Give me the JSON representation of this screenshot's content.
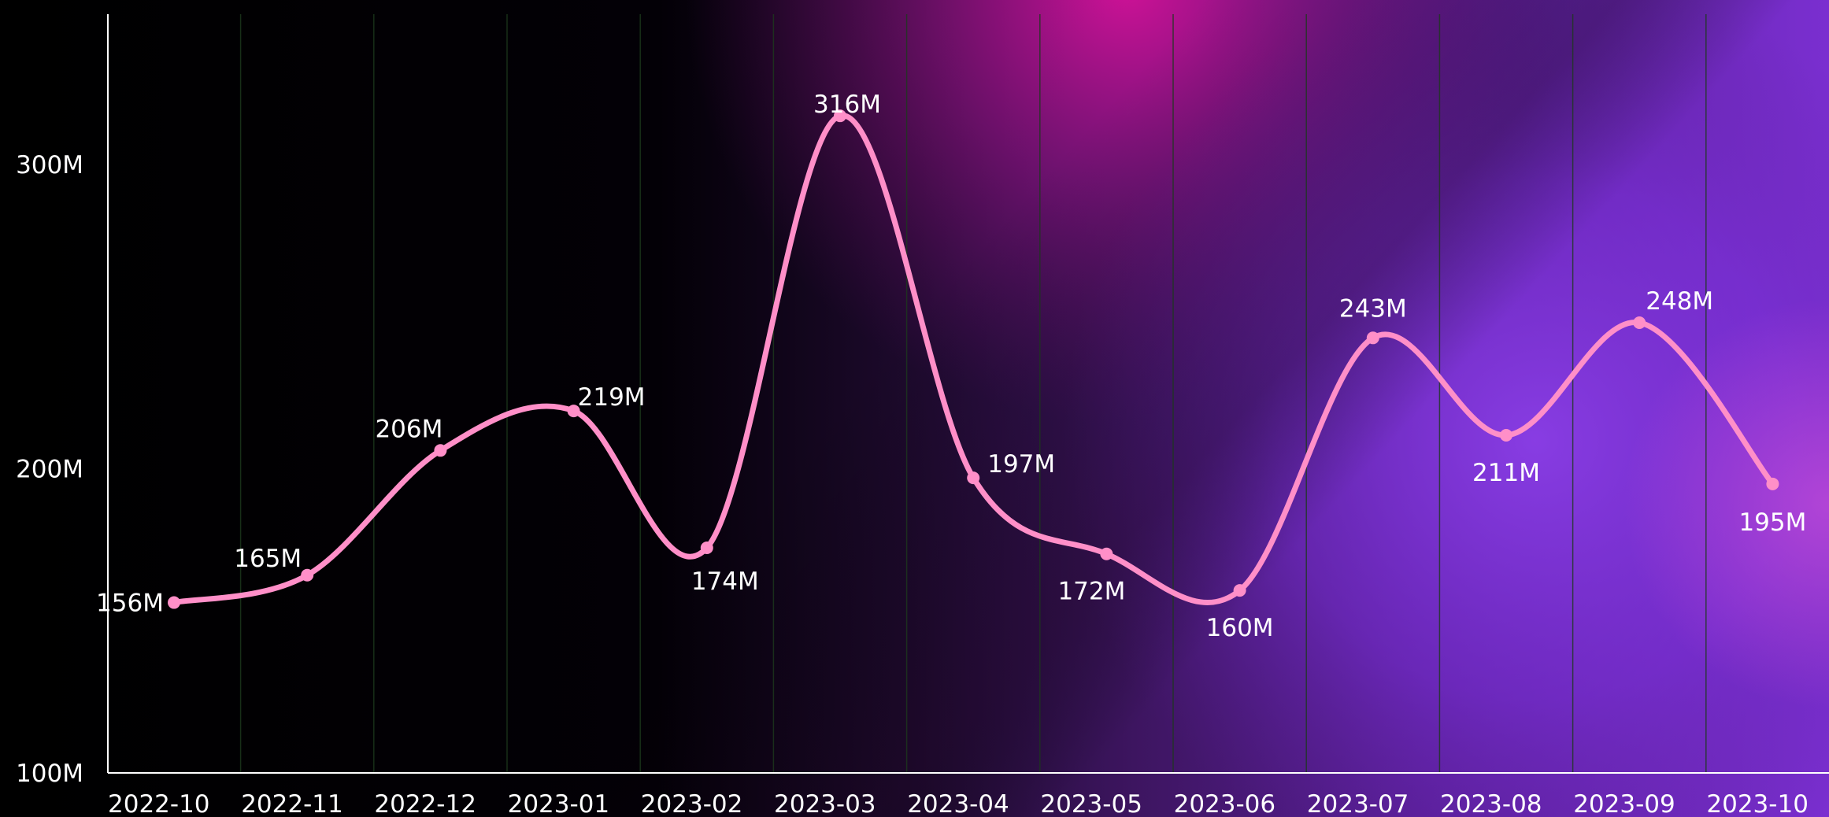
{
  "chart_data": {
    "type": "line",
    "title": "",
    "xlabel": "",
    "ylabel": "",
    "categories": [
      "2022-10",
      "2022-11",
      "2022-12",
      "2023-01",
      "2023-02",
      "2023-03",
      "2023-04",
      "2023-05",
      "2023-06",
      "2023-07",
      "2023-08",
      "2023-09",
      "2023-10"
    ],
    "series": [
      {
        "values": [
          156,
          165,
          206,
          219,
          174,
          316,
          197,
          172,
          160,
          243,
          211,
          248,
          195
        ],
        "labels": [
          "156M",
          "165M",
          "206M",
          "219M",
          "174M",
          "316M",
          "197M",
          "172M",
          "160M",
          "243M",
          "211M",
          "248M",
          "195M"
        ]
      }
    ],
    "ylim": [
      100,
      350
    ],
    "yticks": [
      100,
      200,
      300
    ],
    "ytick_labels": [
      "100M",
      "200M",
      "300M"
    ],
    "grid": "vertical",
    "smooth": true,
    "colors": {
      "line": "#ff8fc8",
      "axis": "#ffffff",
      "grid": "#1d3a1d",
      "text": "#ffffff",
      "background_dark": "#000000",
      "gradient_purple": "#7f35d6",
      "gradient_magenta": "#c0138f"
    }
  }
}
